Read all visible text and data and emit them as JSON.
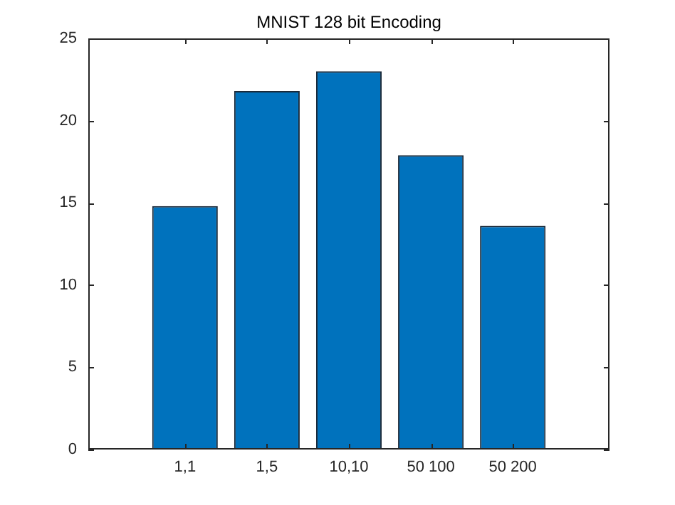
{
  "chart_data": {
    "type": "bar",
    "title": "MNIST 128 bit Encoding",
    "categories": [
      "1,1",
      "1,5",
      "10,10",
      "50 100",
      "50 200"
    ],
    "values": [
      14.8,
      21.8,
      23.0,
      17.9,
      13.6
    ],
    "color": "#0072bd",
    "ylim": [
      0,
      25
    ],
    "yticks": [
      0,
      5,
      10,
      15,
      20,
      25
    ],
    "grid": false,
    "legend": false
  }
}
